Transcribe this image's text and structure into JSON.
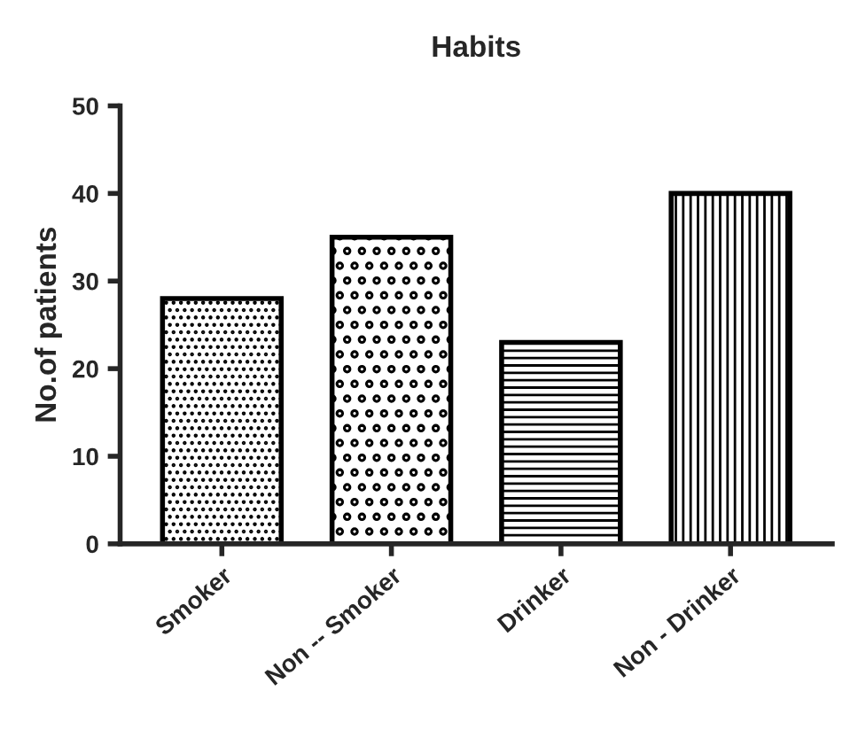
{
  "chart_data": {
    "type": "bar",
    "title": "Habits",
    "ylabel": "No.of patients",
    "categories": [
      "Smoker",
      "Non -- Smoker",
      "Drinker",
      "Non - Drinker"
    ],
    "values": [
      28,
      35,
      23,
      40
    ],
    "colors": [
      "#000000",
      "#000000",
      "#000000",
      "#000000"
    ],
    "ylim": [
      0,
      50
    ],
    "yticks": [
      0,
      10,
      20,
      30,
      40,
      50
    ],
    "grid": false,
    "legend": false
  }
}
